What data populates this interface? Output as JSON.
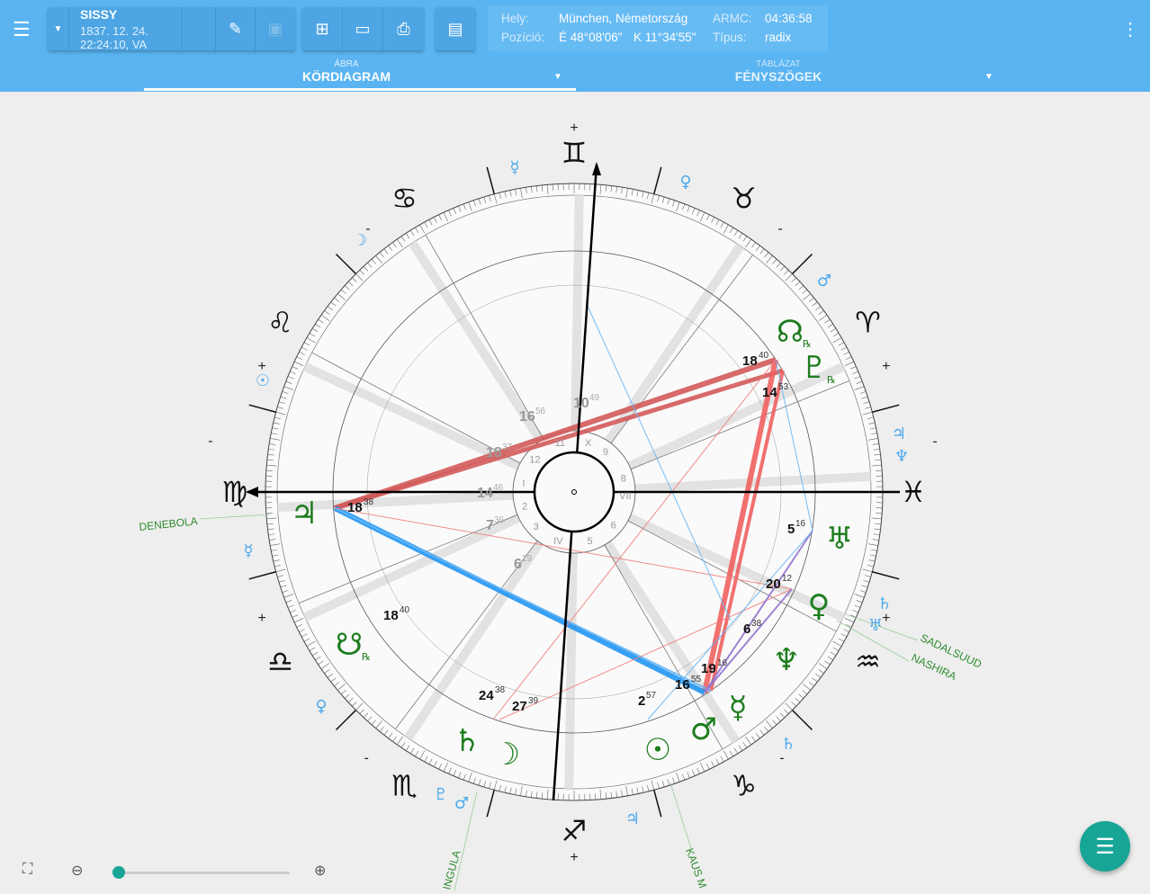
{
  "header": {
    "menu_icon": "menu-icon",
    "name": "SISSY",
    "datetime": "1837. 12. 24. 22:24:10, VA",
    "info": {
      "place_label": "Hely:",
      "place": "München, Németország",
      "armc_label": "ARMC:",
      "armc": "04:36:58",
      "pos_label": "Pozíció:",
      "lat": "É 48°08'06\"",
      "lon": "K 11°34'55\"",
      "type_label": "Típus:",
      "type": "radix"
    }
  },
  "tabs": [
    {
      "small": "ÁBRA",
      "label": "KÖRDIAGRAM",
      "active": true
    },
    {
      "small": "TÁBLÁZAT",
      "label": "FÉNYSZÖGEK",
      "active": false
    }
  ],
  "chart": {
    "signs": [
      "♓",
      "♈",
      "♉",
      "♊",
      "♋",
      "♌",
      "♍",
      "♎",
      "♏",
      "♐",
      "♑",
      "♒"
    ],
    "planets": [
      {
        "glyph": "☊",
        "deg": "18",
        "min": "40",
        "rx": "℞"
      },
      {
        "glyph": "♇",
        "deg": "14",
        "min": "53",
        "rx": "℞"
      },
      {
        "glyph": "♅",
        "deg": "5",
        "min": "16"
      },
      {
        "glyph": "♀",
        "deg": "20",
        "min": "12"
      },
      {
        "glyph": "♆",
        "deg": "6",
        "min": "38"
      },
      {
        "glyph": "☿",
        "deg": "19",
        "min": "16"
      },
      {
        "glyph": "♂",
        "deg": "16",
        "min": "55"
      },
      {
        "glyph": "☉",
        "deg": "2",
        "min": "57"
      },
      {
        "glyph": "☽",
        "deg": "27",
        "min": "39"
      },
      {
        "glyph": "♄",
        "deg": "24",
        "min": "38"
      },
      {
        "glyph": "☋",
        "deg": "18",
        "min": "40",
        "rx": "℞"
      },
      {
        "glyph": "♃",
        "deg": "18",
        "min": "38"
      }
    ],
    "cusps": [
      {
        "deg": "10",
        "min": "49"
      },
      {
        "deg": "16",
        "min": "56"
      },
      {
        "deg": "18",
        "min": "37"
      },
      {
        "deg": "14",
        "min": "46"
      },
      {
        "deg": "7",
        "min": "36"
      },
      {
        "deg": "6",
        "min": "19"
      }
    ],
    "house_numbers": [
      "VII",
      "8",
      "9",
      "X",
      "11",
      "12",
      "I",
      "2",
      "3",
      "IV",
      "5",
      "6"
    ],
    "dignities": [
      "☿",
      "♀",
      "☽",
      "♂",
      "☉",
      "♃",
      "♆",
      "☿",
      "♄",
      "♅",
      "♀",
      "♄",
      "♇",
      "♂",
      "♃"
    ],
    "polarity": [
      "+",
      "-",
      "-",
      "+",
      "+",
      "-",
      "-",
      "+",
      "+",
      "-",
      "-",
      "+"
    ],
    "stars": [
      "DENEBOLA",
      "SADALSUUD",
      "NASHIRA",
      "INGULA",
      "KAUS M"
    ],
    "colors": {
      "planet": "#1e7d1e",
      "dignity": "#4aa8ec",
      "aspect_red": "#d9534f",
      "aspect_blue": "#2196f3"
    }
  },
  "controls": {
    "zoom_level": 0.04
  }
}
